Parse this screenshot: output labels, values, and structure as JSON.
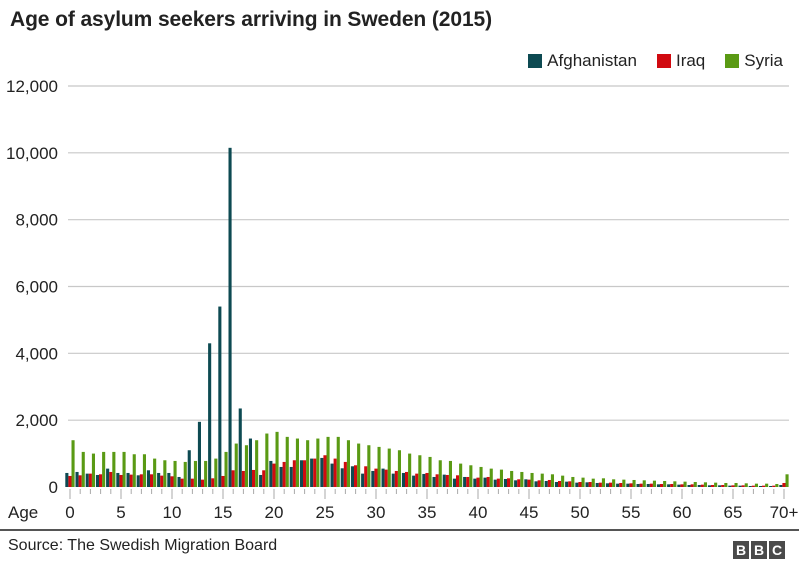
{
  "chart_data": {
    "type": "bar",
    "title": "Age of asylum seekers arriving in Sweden (2015)",
    "xlabel": "Age",
    "ylabel": "",
    "ylim": [
      0,
      12000
    ],
    "yticks": [
      "0",
      "2,000",
      "4,000",
      "6,000",
      "8,000",
      "10,000",
      "12,000"
    ],
    "ytick_values": [
      0,
      2000,
      4000,
      6000,
      8000,
      10000,
      12000
    ],
    "xtick_labels": [
      "0",
      "5",
      "10",
      "15",
      "20",
      "25",
      "30",
      "35",
      "40",
      "45",
      "50",
      "55",
      "60",
      "65",
      "70+"
    ],
    "xtick_ages": [
      0,
      5,
      10,
      15,
      20,
      25,
      30,
      35,
      40,
      45,
      50,
      55,
      60,
      65,
      70
    ],
    "grid": true,
    "legend_position": "top-right",
    "categories": [
      0,
      1,
      2,
      3,
      4,
      5,
      6,
      7,
      8,
      9,
      10,
      11,
      12,
      13,
      14,
      15,
      16,
      17,
      18,
      19,
      20,
      21,
      22,
      23,
      24,
      25,
      26,
      27,
      28,
      29,
      30,
      31,
      32,
      33,
      34,
      35,
      36,
      37,
      38,
      39,
      40,
      41,
      42,
      43,
      44,
      45,
      46,
      47,
      48,
      49,
      50,
      51,
      52,
      53,
      54,
      55,
      56,
      57,
      58,
      59,
      60,
      61,
      62,
      63,
      64,
      65,
      66,
      67,
      68,
      69,
      "70+"
    ],
    "series": [
      {
        "name": "Afghanistan",
        "color": "#0d4a52",
        "values": [
          420,
          450,
          400,
          360,
          550,
          420,
          420,
          350,
          500,
          420,
          420,
          300,
          1100,
          1950,
          4300,
          5400,
          10150,
          2350,
          1450,
          360,
          780,
          600,
          600,
          800,
          850,
          870,
          700,
          560,
          620,
          400,
          480,
          550,
          400,
          420,
          340,
          390,
          300,
          370,
          250,
          300,
          250,
          280,
          220,
          240,
          200,
          230,
          170,
          180,
          150,
          160,
          130,
          140,
          120,
          110,
          100,
          100,
          90,
          90,
          80,
          80,
          70,
          60,
          60,
          50,
          50,
          40,
          40,
          30,
          30,
          30,
          60
        ]
      },
      {
        "name": "Iraq",
        "color": "#d10a10",
        "values": [
          330,
          350,
          400,
          380,
          450,
          360,
          370,
          380,
          380,
          340,
          320,
          250,
          250,
          220,
          260,
          330,
          500,
          480,
          510,
          500,
          700,
          750,
          800,
          800,
          850,
          950,
          850,
          750,
          650,
          620,
          550,
          520,
          480,
          450,
          400,
          420,
          380,
          360,
          350,
          300,
          280,
          300,
          250,
          260,
          230,
          220,
          200,
          210,
          180,
          170,
          150,
          150,
          130,
          130,
          120,
          110,
          100,
          100,
          90,
          90,
          80,
          80,
          70,
          60,
          60,
          50,
          50,
          40,
          40,
          40,
          120
        ]
      },
      {
        "name": "Syria",
        "color": "#5a9a14",
        "values": [
          1400,
          1050,
          1000,
          1050,
          1050,
          1050,
          980,
          980,
          850,
          800,
          780,
          750,
          780,
          780,
          850,
          1050,
          1300,
          1250,
          1400,
          1600,
          1650,
          1500,
          1450,
          1400,
          1450,
          1500,
          1500,
          1400,
          1300,
          1250,
          1200,
          1150,
          1100,
          1000,
          950,
          900,
          800,
          780,
          700,
          650,
          600,
          550,
          520,
          480,
          450,
          420,
          400,
          380,
          340,
          300,
          280,
          250,
          260,
          230,
          220,
          210,
          200,
          190,
          180,
          170,
          160,
          150,
          140,
          130,
          120,
          120,
          110,
          100,
          100,
          90,
          380
        ]
      }
    ]
  },
  "footer": {
    "source": "Source: The Swedish Migration Board",
    "logo_letters": [
      "B",
      "B",
      "C"
    ]
  }
}
